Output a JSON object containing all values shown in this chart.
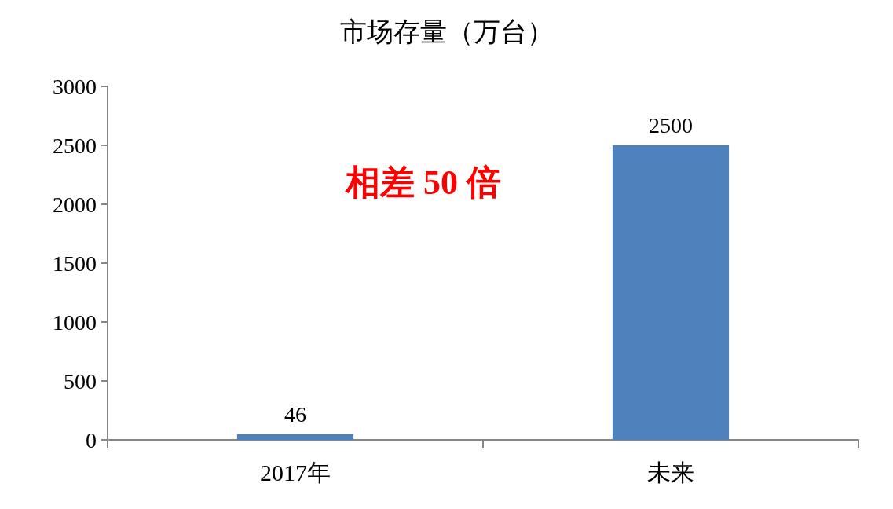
{
  "chart_data": {
    "type": "bar",
    "title": "市场存量（万台）",
    "categories": [
      "2017年",
      "未来"
    ],
    "values": [
      46,
      2500
    ],
    "color": "#4f81bd",
    "ylim": [
      0,
      3000
    ],
    "yticks": [
      0,
      500,
      1000,
      1500,
      2000,
      2500,
      3000
    ],
    "grid": false,
    "data_labels": true,
    "annotations": [
      "相差 50 倍"
    ]
  }
}
